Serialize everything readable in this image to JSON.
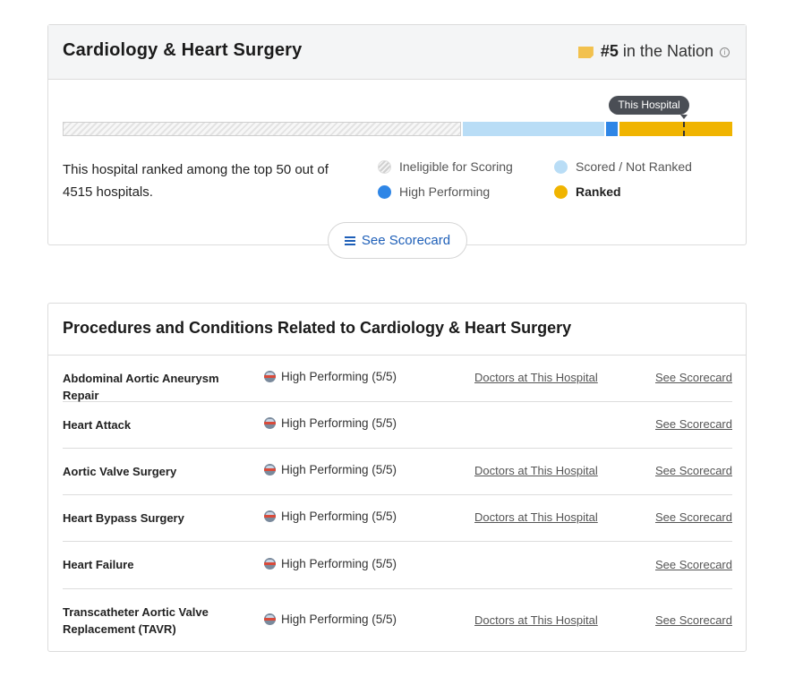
{
  "specialty": {
    "title": "Cardiology & Heart Surgery",
    "rank_number": "#5",
    "rank_text": "in the Nation",
    "tooltip": "This Hospital",
    "summary": "This hospital ranked among the top 50 out of 4515 hospitals.",
    "legend": {
      "ineligible": "Ineligible for Scoring",
      "scored": "Scored / Not Ranked",
      "high": "High Performing",
      "ranked": "Ranked"
    },
    "scorecard_button": "See Scorecard",
    "colors": {
      "ineligible": "#e3e3e3",
      "scored": "#b9ddf6",
      "high": "#2f86e6",
      "ranked": "#f0b400"
    }
  },
  "procedures": {
    "title": "Procedures and Conditions Related to Cardiology & Heart Surgery",
    "rows": [
      {
        "name": "Abdominal Aortic Aneurysm Repair",
        "rating": "High Performing (5/5)",
        "doctors": "Doctors at This Hospital",
        "scorecard": "See Scorecard"
      },
      {
        "name": "Heart Attack",
        "rating": "High Performing (5/5)",
        "doctors": "",
        "scorecard": "See Scorecard"
      },
      {
        "name": "Aortic Valve Surgery",
        "rating": "High Performing (5/5)",
        "doctors": "Doctors at This Hospital",
        "scorecard": "See Scorecard"
      },
      {
        "name": "Heart Bypass Surgery",
        "rating": "High Performing (5/5)",
        "doctors": "Doctors at This Hospital",
        "scorecard": "See Scorecard"
      },
      {
        "name": "Heart Failure",
        "rating": "High Performing (5/5)",
        "doctors": "",
        "scorecard": "See Scorecard"
      },
      {
        "name": "Transcatheter Aortic Valve Replacement (TAVR)",
        "rating": "High Performing (5/5)",
        "doctors": "Doctors at This Hospital",
        "scorecard": "See Scorecard"
      }
    ]
  }
}
